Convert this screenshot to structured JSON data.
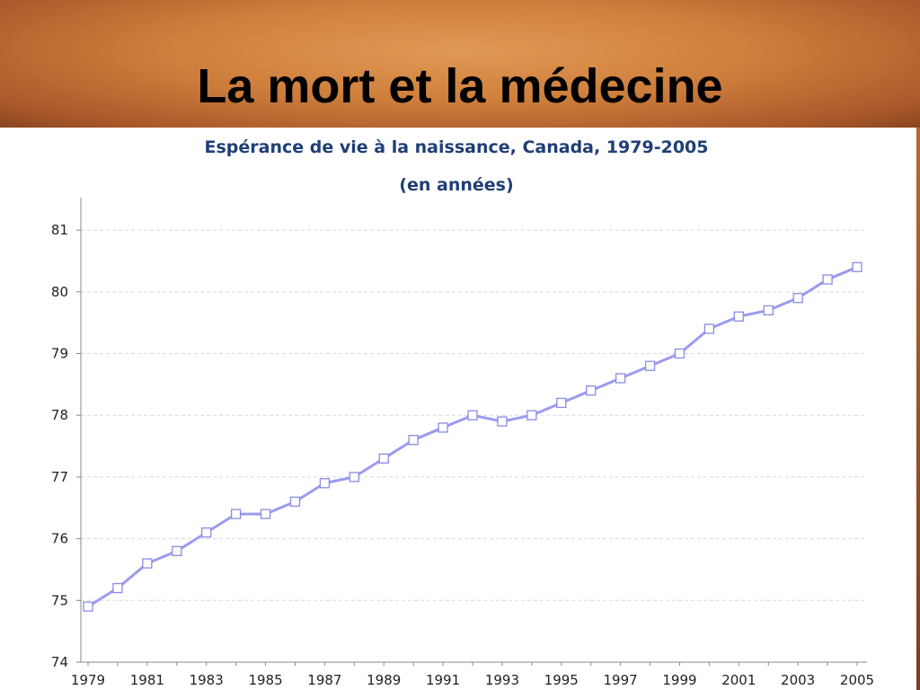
{
  "slide": {
    "title": "La mort et la médecine"
  },
  "chart_data": {
    "type": "line",
    "title": "Espérance de vie à la naissance, Canada, 1979-2005",
    "subtitle": "(en années)",
    "xlabel": "",
    "ylabel": "",
    "x": [
      1979,
      1980,
      1981,
      1982,
      1983,
      1984,
      1985,
      1986,
      1987,
      1988,
      1989,
      1990,
      1991,
      1992,
      1993,
      1994,
      1995,
      1996,
      1997,
      1998,
      1999,
      2000,
      2001,
      2002,
      2003,
      2004,
      2005
    ],
    "x_tick_labels": [
      "1979",
      "1981",
      "1983",
      "1985",
      "1987",
      "1989",
      "1991",
      "1993",
      "1995",
      "1997",
      "1999",
      "2001",
      "2003",
      "2005"
    ],
    "y_tick_labels": [
      "74",
      "75",
      "76",
      "77",
      "78",
      "79",
      "80",
      "81"
    ],
    "ylim": [
      74,
      81.5
    ],
    "grid": "horizontal dashed",
    "series": [
      {
        "values": [
          74.9,
          75.2,
          75.6,
          75.8,
          76.1,
          76.4,
          76.4,
          76.6,
          76.9,
          77.0,
          77.3,
          77.6,
          77.8,
          78.0,
          77.9,
          78.0,
          78.2,
          78.4,
          78.6,
          78.8,
          79.0,
          79.4,
          79.6,
          79.7,
          79.9,
          80.2,
          80.4
        ],
        "color": "#9b9bf0",
        "marker": "square"
      }
    ]
  }
}
